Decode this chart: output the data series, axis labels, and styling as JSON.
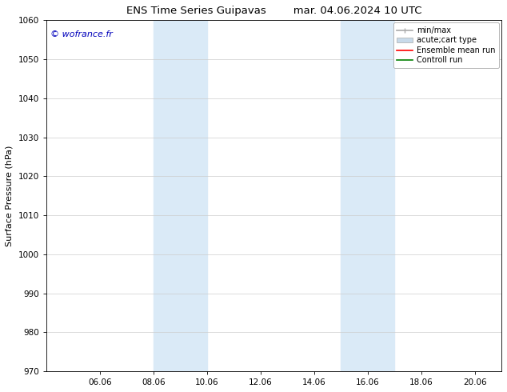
{
  "title_left": "ENS Time Series Guipavas",
  "title_right": "mar. 04.06.2024 10 UTC",
  "ylabel": "Surface Pressure (hPa)",
  "ylim": [
    970,
    1060
  ],
  "yticks": [
    970,
    980,
    990,
    1000,
    1010,
    1020,
    1030,
    1040,
    1050,
    1060
  ],
  "xlim_start": 4.0,
  "xlim_end": 21.0,
  "xtick_labels": [
    "06.06",
    "08.06",
    "10.06",
    "12.06",
    "14.06",
    "16.06",
    "18.06",
    "20.06"
  ],
  "xtick_positions": [
    6.0,
    8.0,
    10.0,
    12.0,
    14.0,
    16.0,
    18.0,
    20.0
  ],
  "shaded_bands": [
    {
      "x_start": 8.0,
      "x_end": 10.0
    },
    {
      "x_start": 15.0,
      "x_end": 17.0
    }
  ],
  "shaded_color": "#daeaf7",
  "background_color": "#ffffff",
  "watermark_text": "© wofrance.fr",
  "watermark_color": "#0000bb",
  "watermark_fontsize": 8,
  "legend_entries": [
    {
      "label": "min/max",
      "color": "#aaaaaa",
      "lw": 1.2,
      "style": "minmax"
    },
    {
      "label": "acute;cart type",
      "color": "#c8daea",
      "lw": 8,
      "style": "band"
    },
    {
      "label": "Ensemble mean run",
      "color": "#ff0000",
      "lw": 1.2,
      "style": "line"
    },
    {
      "label": "Controll run",
      "color": "#008000",
      "lw": 1.2,
      "style": "line"
    }
  ],
  "title_fontsize": 9.5,
  "axis_fontsize": 8,
  "tick_fontsize": 7.5,
  "legend_fontsize": 7
}
